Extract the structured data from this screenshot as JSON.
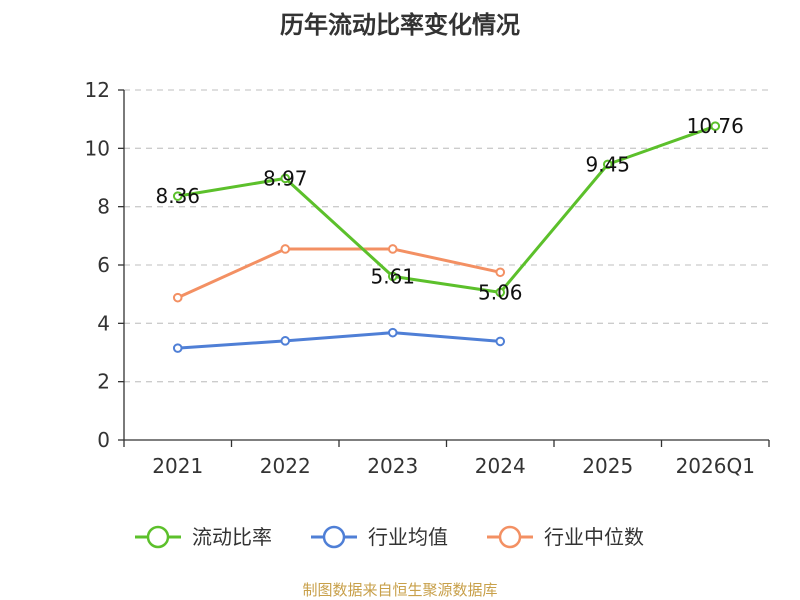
{
  "chart_data": {
    "type": "line",
    "title": "历年流动比率变化情况",
    "categories": [
      "2021",
      "2022",
      "2023",
      "2024",
      "2025",
      "2026Q1"
    ],
    "ylim": [
      0,
      12
    ],
    "yticks": [
      0,
      2,
      4,
      6,
      8,
      10,
      12
    ],
    "grid": true,
    "legend_position": "bottom",
    "xlabel": "",
    "ylabel": "",
    "series": [
      {
        "name": "流动比率",
        "color": "#5cc02b",
        "values": [
          8.36,
          8.97,
          5.61,
          5.06,
          9.45,
          10.76
        ],
        "labels": [
          "8.36",
          "8.97",
          "5.61",
          "5.06",
          "9.45",
          "10.76"
        ]
      },
      {
        "name": "行业均值",
        "color": "#4f7fd6",
        "values": [
          3.15,
          3.4,
          3.68,
          3.38,
          null,
          null
        ]
      },
      {
        "name": "行业中位数",
        "color": "#f39063",
        "values": [
          4.88,
          6.55,
          6.55,
          5.75,
          null,
          null
        ]
      }
    ],
    "source": "制图数据来自恒生聚源数据库"
  }
}
